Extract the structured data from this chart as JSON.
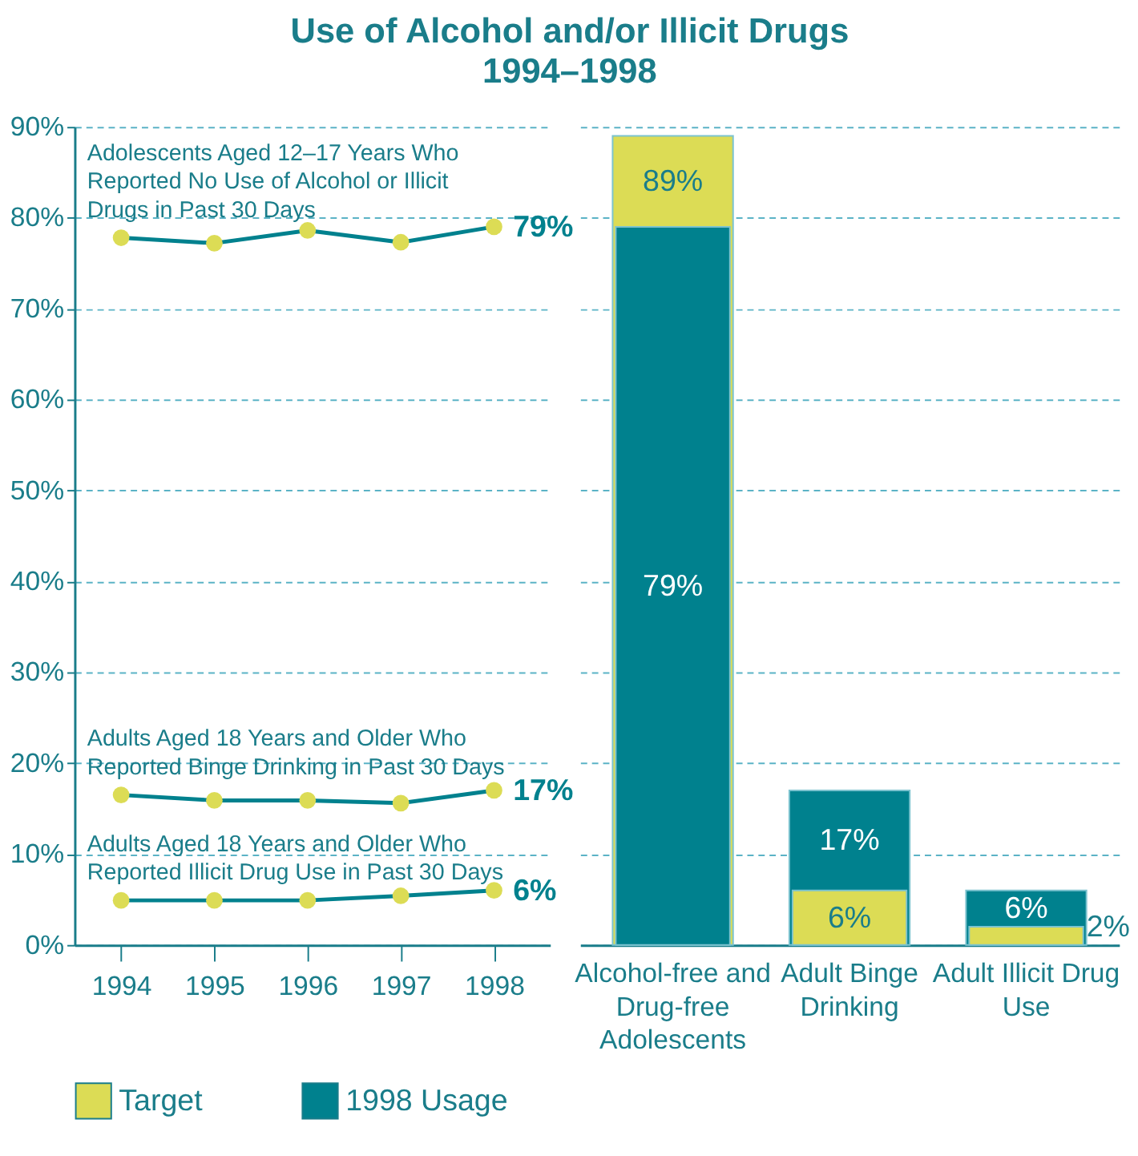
{
  "chart_data": [
    {
      "type": "line",
      "title": "Use of Alcohol and/or Illicit Drugs",
      "subtitle": "1994–1998",
      "x": [
        1994,
        1995,
        1996,
        1997,
        1998
      ],
      "series": [
        {
          "name": "Adolescents Aged 12–17 Years Who Reported No Use of Alcohol or Illicit Drugs in Past 30 Days",
          "color": "#00818e",
          "values": [
            77.8,
            77.2,
            78.6,
            77.3,
            79
          ],
          "value_labels": [
            null,
            null,
            null,
            null,
            "79%"
          ]
        },
        {
          "name": "Adults Aged 18 Years and Older Who Reported Binge Drinking in Past 30 Days",
          "color": "#00818e",
          "values": [
            16.5,
            15.9,
            15.9,
            15.6,
            17
          ],
          "value_labels": [
            null,
            null,
            null,
            null,
            "17%"
          ]
        },
        {
          "name": "Adults Aged 18 Years and Older Who Reported Illicit Drug Use in Past 30 Days",
          "color": "#00818e",
          "values": [
            4.9,
            4.9,
            4.9,
            5.4,
            6
          ],
          "value_labels": [
            null,
            null,
            null,
            null,
            "6%"
          ]
        }
      ],
      "marker": "circle",
      "line_style": "solid",
      "xlim": [
        1993.5,
        1998.6
      ],
      "xticks": [
        1994,
        1995,
        1996,
        1997,
        1998
      ],
      "ylim": [
        0,
        90
      ],
      "yticks": [
        {
          "value": 0,
          "label": "0%"
        },
        {
          "value": 10,
          "label": "10%"
        },
        {
          "value": 20,
          "label": "20%"
        },
        {
          "value": 30,
          "label": "30%"
        },
        {
          "value": 40,
          "label": "40%"
        },
        {
          "value": 50,
          "label": "50%"
        },
        {
          "value": 60,
          "label": "60%"
        },
        {
          "value": 70,
          "label": "70%"
        },
        {
          "value": 80,
          "label": "80%"
        },
        {
          "value": 90,
          "label": "90%"
        }
      ],
      "grid": "y"
    },
    {
      "type": "bar",
      "categories": [
        "Alcohol-free and Drug-free Adolescents",
        "Adult Binge Drinking",
        "Adult Illicit Drug Use"
      ],
      "series": [
        {
          "name": "Target",
          "color": "#dcdc55",
          "values": [
            89,
            6,
            2
          ],
          "value_labels": [
            "89%",
            "6%",
            "2%"
          ]
        },
        {
          "name": "1998 Usage",
          "color": "#00818e",
          "values": [
            79,
            17,
            6
          ],
          "value_labels": [
            "79%",
            "17%",
            "6%"
          ]
        }
      ],
      "ylim": [
        0,
        90
      ],
      "yticks": [
        0,
        10,
        20,
        30,
        40,
        50,
        60,
        70,
        80,
        90
      ],
      "grid": "y",
      "tick_labels": "x",
      "legend": "bottom"
    }
  ]
}
